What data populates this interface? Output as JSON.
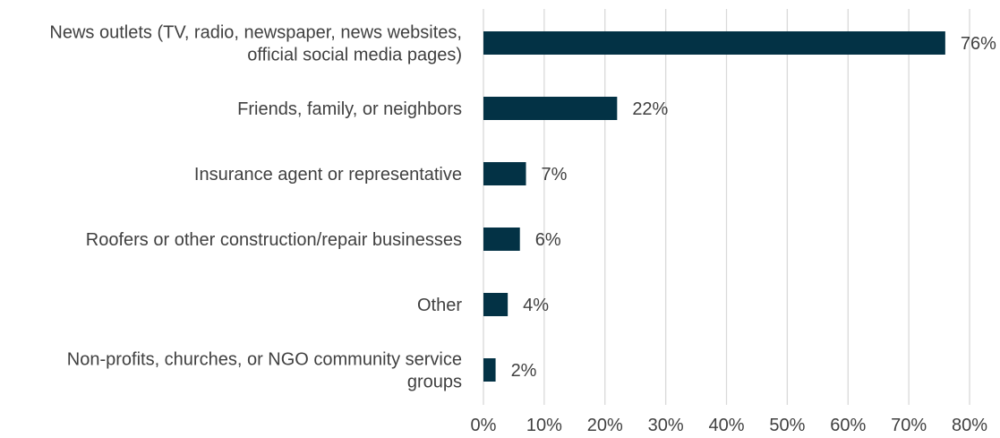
{
  "chart_data": {
    "type": "bar",
    "orientation": "horizontal",
    "title": "",
    "xlabel": "",
    "ylabel": "",
    "categories": [
      [
        "News outlets (TV, radio, newspaper, news websites,",
        "official social media pages)"
      ],
      [
        "Friends, family, or neighbors"
      ],
      [
        "Insurance agent or representative"
      ],
      [
        "Roofers or other construction/repair businesses"
      ],
      [
        "Other"
      ],
      [
        "Non-profits, churches, or NGO community service",
        "groups"
      ]
    ],
    "values": [
      76,
      22,
      7,
      6,
      4,
      2
    ],
    "value_labels": [
      "76%",
      "22%",
      "7%",
      "6%",
      "4%",
      "2%"
    ],
    "xlim": [
      0,
      80
    ],
    "x_ticks": [
      0,
      10,
      20,
      30,
      40,
      50,
      60,
      70,
      80
    ],
    "x_tick_labels": [
      "0%",
      "10%",
      "20%",
      "30%",
      "40%",
      "50%",
      "60%",
      "70%",
      "80%"
    ],
    "grid": "vertical",
    "legend": "none",
    "bar_color": "#033245"
  }
}
